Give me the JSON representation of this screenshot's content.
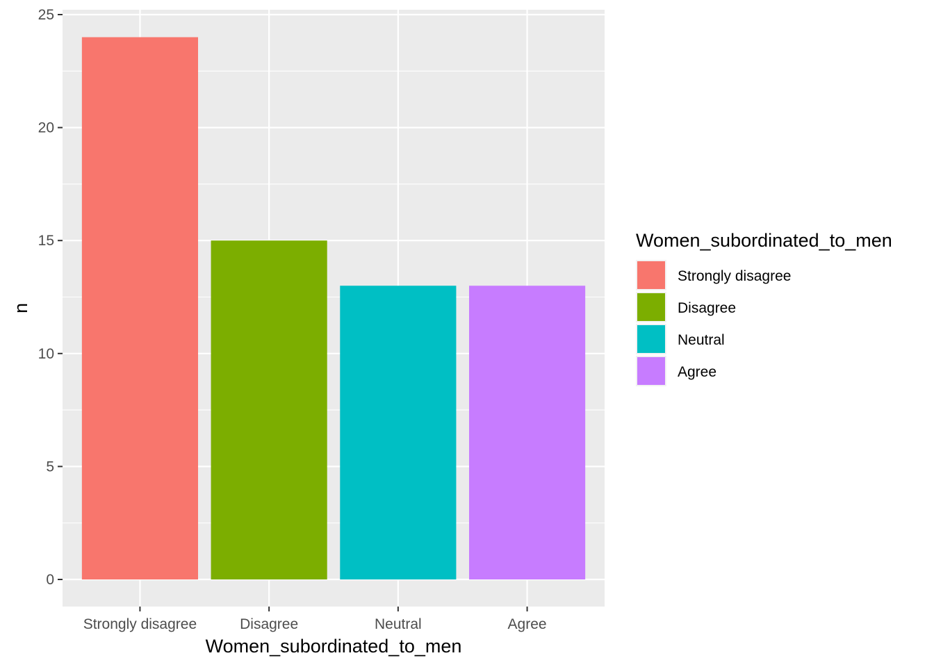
{
  "chart_data": {
    "type": "bar",
    "categories": [
      "Strongly disagree",
      "Disagree",
      "Neutral",
      "Agree"
    ],
    "values": [
      24,
      15,
      13,
      13
    ],
    "colors": [
      "#F8766D",
      "#7CAE00",
      "#00BFC4",
      "#C77CFF"
    ],
    "xlabel": "Women_subordinated_to_men",
    "ylabel": "n",
    "ylim": [
      0,
      25
    ],
    "yticks": [
      0,
      5,
      10,
      15,
      20,
      25
    ],
    "grid": true,
    "legend": {
      "title": "Women_subordinated_to_men",
      "placement": "right",
      "entries": [
        "Strongly disagree",
        "Disagree",
        "Neutral",
        "Agree"
      ]
    }
  }
}
